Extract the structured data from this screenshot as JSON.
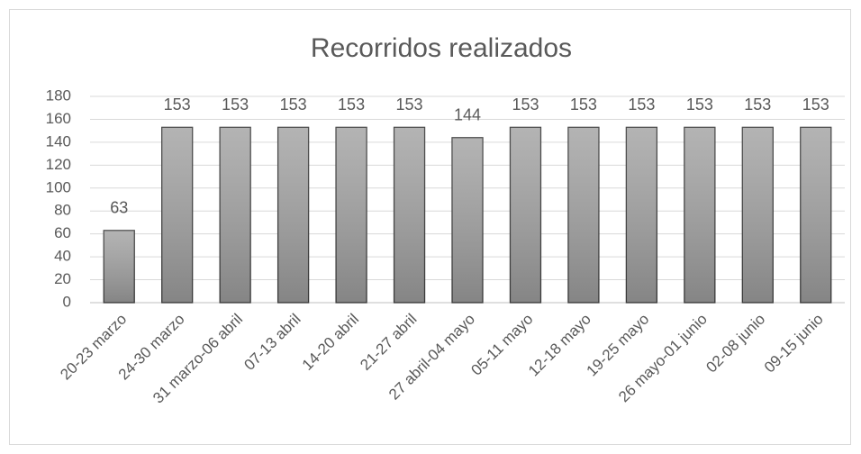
{
  "chart_data": {
    "type": "bar",
    "title": "Recorridos realizados",
    "categories": [
      "20-23 marzo",
      "24-30 marzo",
      "31 marzo-06 abril",
      "07-13 abril",
      "14-20 abril",
      "21-27 abril",
      "27 abril-04 mayo",
      "05-11 mayo",
      "12-18 mayo",
      "19-25 mayo",
      "26 mayo-01 junio",
      "02-08 junio",
      "09-15 junio"
    ],
    "values": [
      63,
      153,
      153,
      153,
      153,
      153,
      144,
      153,
      153,
      153,
      153,
      153,
      153
    ],
    "color": "#a6a6a6",
    "ylim": [
      0,
      180
    ],
    "yticks": [
      0,
      20,
      40,
      60,
      80,
      100,
      120,
      140,
      160,
      180
    ],
    "grid": true
  }
}
